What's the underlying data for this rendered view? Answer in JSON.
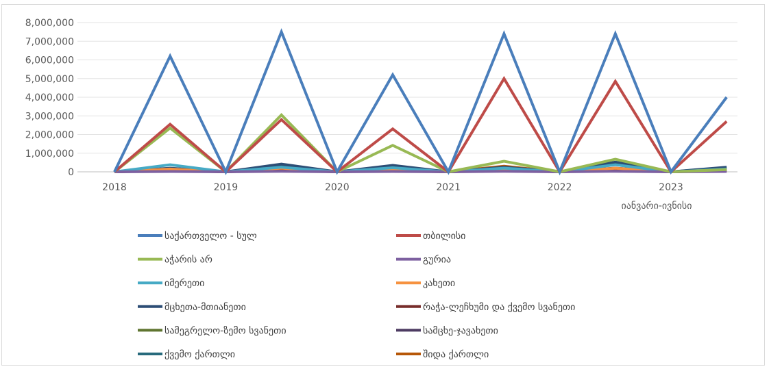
{
  "chart_data": {
    "type": "line",
    "title": "",
    "xlabel": "",
    "ylabel": "",
    "ylim": [
      0,
      8000000
    ],
    "y_ticks": [
      "0",
      "1,000,000",
      "2,000,000",
      "3,000,000",
      "4,000,000",
      "5,000,000",
      "6,000,000",
      "7,000,000",
      "8,000,000"
    ],
    "x_tick_labels": [
      "2018",
      "2019",
      "2020",
      "2021",
      "2022",
      "2023",
      "იანვარი-ივნისი"
    ],
    "grid": true,
    "legend_position": "bottom",
    "x_points": 12,
    "series": [
      {
        "name": "საქართველო - სულ",
        "color": "#4a7ebb",
        "values": [
          0,
          6200000,
          0,
          7500000,
          0,
          5200000,
          0,
          7400000,
          0,
          7400000,
          0,
          4000000
        ]
      },
      {
        "name": "თბილისი",
        "color": "#be4b48",
        "values": [
          0,
          2550000,
          0,
          2800000,
          0,
          2300000,
          0,
          5000000,
          0,
          4850000,
          0,
          2700000
        ]
      },
      {
        "name": "აჭარის არ",
        "color": "#98b954",
        "values": [
          0,
          2350000,
          0,
          3050000,
          0,
          1420000,
          0,
          570000,
          0,
          680000,
          0,
          120000
        ]
      },
      {
        "name": "გურია",
        "color": "#7d60a0",
        "values": [
          0,
          20000,
          0,
          30000,
          0,
          20000,
          0,
          30000,
          0,
          30000,
          0,
          20000
        ]
      },
      {
        "name": "იმერეთი",
        "color": "#46aac5",
        "values": [
          0,
          380000,
          0,
          250000,
          0,
          220000,
          0,
          200000,
          0,
          380000,
          0,
          150000
        ]
      },
      {
        "name": "კახეთი",
        "color": "#f69240",
        "values": [
          0,
          150000,
          0,
          200000,
          0,
          120000,
          0,
          170000,
          0,
          190000,
          0,
          100000
        ]
      },
      {
        "name": "მცხეთა-მთიანეთი",
        "color": "#2c4d75",
        "values": [
          0,
          200000,
          0,
          420000,
          0,
          350000,
          0,
          250000,
          0,
          520000,
          0,
          250000
        ]
      },
      {
        "name": "რაჭა-ლეჩხუმი და ქვემო სვანეთი",
        "color": "#772c2a",
        "values": [
          0,
          60000,
          0,
          90000,
          0,
          60000,
          0,
          90000,
          0,
          100000,
          0,
          60000
        ]
      },
      {
        "name": "სამეგრელო-ზემო სვანეთი",
        "color": "#5f7530",
        "values": [
          0,
          100000,
          0,
          150000,
          0,
          100000,
          0,
          130000,
          0,
          150000,
          0,
          90000
        ]
      },
      {
        "name": "სამცხე-ჯავახეთი",
        "color": "#4d3b62",
        "values": [
          0,
          120000,
          0,
          180000,
          0,
          130000,
          0,
          110000,
          0,
          200000,
          0,
          110000
        ]
      },
      {
        "name": "ქვემო ქართლი",
        "color": "#276a7c",
        "values": [
          0,
          180000,
          0,
          300000,
          0,
          250000,
          0,
          200000,
          0,
          400000,
          0,
          220000
        ]
      },
      {
        "name": "შიდა ქართლი",
        "color": "#b65708",
        "values": [
          0,
          80000,
          0,
          120000,
          0,
          90000,
          0,
          300000,
          0,
          200000,
          0,
          80000
        ]
      }
    ]
  }
}
